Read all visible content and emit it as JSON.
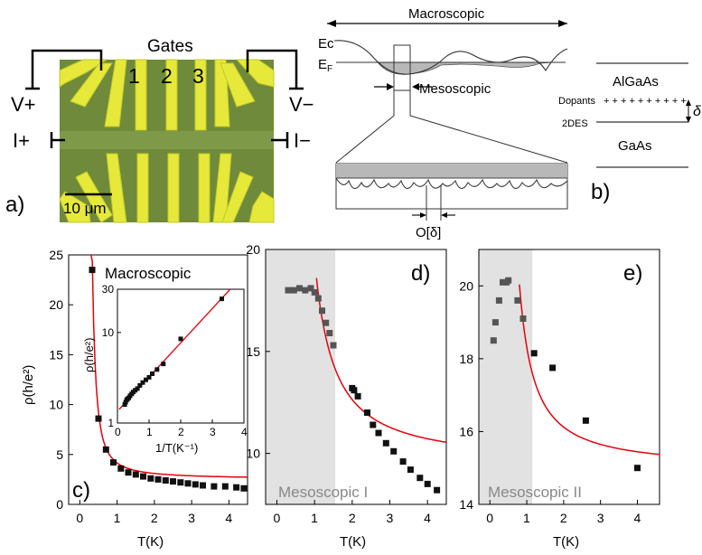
{
  "panel_a": {
    "letter": "a)",
    "gates_title": "Gates",
    "gate_numbers": [
      "1",
      "2",
      "3"
    ],
    "v_plus": "V+",
    "v_minus": "V−",
    "i_plus": "I+",
    "i_minus": "I−",
    "scale_bar": "10 μm",
    "colors": {
      "substrate": "#6f8a3a",
      "gold": "#e6e93a"
    }
  },
  "schematic": {
    "macroscopic": "Macroscopic",
    "ec": "Ec",
    "ef": "EF",
    "ef_main": "E",
    "ef_sub": "F",
    "mesoscopic": "Mesoscopic",
    "order_delta": "O[δ]"
  },
  "panel_b": {
    "letter": "b)",
    "algaas": "AlGaAs",
    "dopants": "Dopants",
    "dopant_marks": "+ + + + + + + + + +",
    "twodes": "2DES",
    "gaas": "GaAs",
    "delta": "δ"
  },
  "chart_data": [
    {
      "panel": "c)",
      "type": "scatter",
      "title": "Macroscopic",
      "xlabel": "T(K)",
      "ylabel": "ρ(h/e²)",
      "xlim": [
        -0.3,
        4.5
      ],
      "ylim": [
        0,
        25
      ],
      "xticks": [
        "0",
        "1",
        "2",
        "3",
        "4"
      ],
      "yticks": [
        "0",
        "5",
        "10",
        "15",
        "20",
        "25"
      ],
      "points": {
        "x": [
          0.33,
          0.5,
          0.7,
          0.9,
          1.1,
          1.3,
          1.5,
          1.7,
          1.9,
          2.1,
          2.3,
          2.5,
          2.7,
          2.9,
          3.1,
          3.3,
          3.6,
          3.9,
          4.2,
          4.4
        ],
        "y": [
          23.5,
          8.6,
          5.5,
          4.2,
          3.6,
          3.2,
          3.0,
          2.8,
          2.6,
          2.5,
          2.4,
          2.3,
          2.2,
          2.1,
          2.0,
          1.9,
          1.8,
          1.8,
          1.7,
          1.6
        ]
      },
      "fit_color": "#e8000b",
      "marker_color": "#111111",
      "inset": {
        "xlabel": "1/T(K⁻¹)",
        "ylabel": "ρ(h/e²)",
        "xticks": [
          "0",
          "1",
          "2",
          "3",
          "4"
        ],
        "yticks": [
          "1",
          "10",
          "30"
        ],
        "log_y": true,
        "xlim": [
          0,
          4
        ],
        "ylim": [
          1,
          30
        ],
        "points": {
          "x": [
            0.23,
            0.26,
            0.29,
            0.32,
            0.36,
            0.4,
            0.45,
            0.5,
            0.56,
            0.63,
            0.71,
            0.8,
            0.9,
            1.0,
            1.1,
            1.25,
            1.45,
            2.0,
            3.3
          ],
          "y": [
            1.6,
            1.7,
            1.8,
            1.85,
            1.9,
            2.0,
            2.1,
            2.2,
            2.3,
            2.4,
            2.6,
            2.8,
            3.0,
            3.2,
            3.5,
            3.9,
            4.5,
            8.5,
            23.5
          ]
        }
      }
    },
    {
      "panel": "d)",
      "type": "scatter",
      "region_label": "Mesoscopic I",
      "xlabel": "T(K)",
      "xlim": [
        -0.3,
        4.5
      ],
      "ylim": [
        7.5,
        20
      ],
      "xticks": [
        "0",
        "1",
        "2",
        "3",
        "4"
      ],
      "yticks": [
        "10",
        "15",
        "20"
      ],
      "shaded_until": 1.55,
      "points": {
        "x": [
          0.3,
          0.45,
          0.6,
          0.75,
          0.9,
          1.0,
          1.1,
          1.2,
          1.3,
          1.4,
          1.5,
          2.0,
          2.05,
          2.15,
          2.4,
          2.55,
          2.7,
          2.9,
          3.1,
          3.35,
          3.55,
          3.8,
          4.0,
          4.25
        ],
        "y": [
          18.0,
          18.0,
          18.1,
          18.0,
          18.1,
          17.9,
          17.6,
          17.0,
          16.4,
          15.9,
          15.3,
          13.2,
          13.1,
          12.8,
          12.0,
          11.4,
          11.0,
          10.5,
          10.1,
          9.6,
          9.2,
          8.8,
          8.5,
          8.2
        ]
      }
    },
    {
      "panel": "e)",
      "type": "scatter",
      "region_label": "Mesoscopic II",
      "xlabel": "T(K)",
      "xlim": [
        -0.3,
        4.6
      ],
      "ylim": [
        14,
        21
      ],
      "xticks": [
        "0",
        "1",
        "2",
        "3",
        "4"
      ],
      "yticks": [
        "14",
        "16",
        "18",
        "20"
      ],
      "shaded_until": 1.15,
      "points": {
        "x": [
          0.1,
          0.15,
          0.25,
          0.35,
          0.45,
          0.5,
          0.75,
          0.9,
          1.2,
          1.7,
          2.6,
          4.0
        ],
        "y": [
          18.5,
          19.0,
          19.6,
          20.1,
          20.1,
          20.15,
          19.6,
          19.1,
          18.15,
          17.75,
          16.3,
          15.0
        ]
      }
    }
  ]
}
